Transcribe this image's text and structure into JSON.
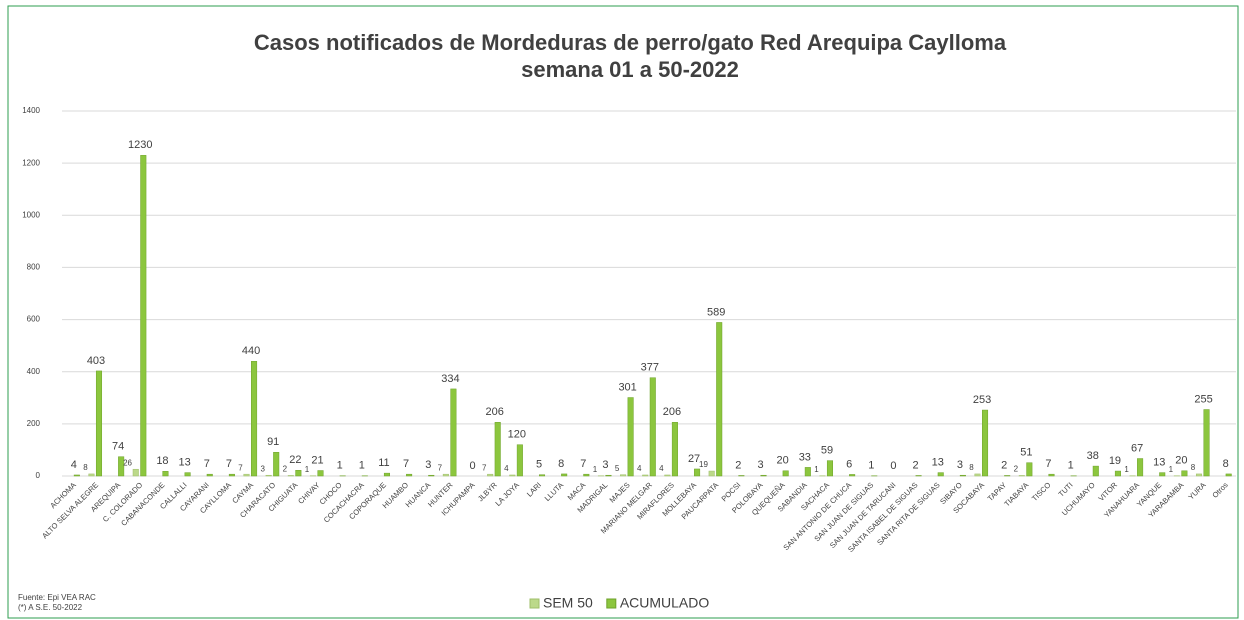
{
  "chart_data": {
    "type": "bar",
    "title": "Casos notificados de Mordeduras de perro/gato Red Arequipa Caylloma",
    "subtitle": "semana 01 a 50-2022",
    "categories": [
      "ACHOMA",
      "ALTO SELVA ALEGRE",
      "AREQUIPA",
      "C. COLORADO",
      "CABANACONDE",
      "CALLALLI",
      "CAYARANI",
      "CAYLLOMA",
      "CAYMA",
      "CHARACATO",
      "CHIGUATA",
      "CHIVAY",
      "CHOCO",
      "COCACHACRA",
      "COPORAQUE",
      "HUAMBO",
      "HUANCA",
      "HUNTER",
      "ICHUPAMPA",
      "JLBYR",
      "LA JOYA",
      "LARI",
      "LLUTA",
      "MACA",
      "MADRIGAL",
      "MAJES",
      "MARIANO MELGAR",
      "MIRAFLORES",
      "MOLLEBAYA",
      "PAUCARPATA",
      "POCSI",
      "POLOBAYA",
      "QUEQUEÑA",
      "SABANDIA",
      "SACHACA",
      "SAN ANTONIO DE CHUCA",
      "SAN JUAN DE SIGUAS",
      "SAN JUAN DE TARUCANI",
      "SANTA ISABEL DE SIGUAS",
      "SANTA RITA DE SIGUAS",
      "SIBAYO",
      "SOCABAYA",
      "TAPAY",
      "TIABAYA",
      "TISCO",
      "TUTI",
      "UCHUMAYO",
      "VITOR",
      "YANAHUARA",
      "YANQUE",
      "YARABAMBA",
      "YURA",
      "Otros"
    ],
    "series": [
      {
        "name": "SEM 50",
        "color": "#bcd98a",
        "values": [
          null,
          8,
          null,
          26,
          null,
          null,
          null,
          null,
          7,
          3,
          2,
          1,
          null,
          null,
          null,
          null,
          null,
          7,
          null,
          7,
          4,
          null,
          null,
          null,
          1,
          5,
          4,
          4,
          null,
          19,
          null,
          null,
          null,
          null,
          1,
          null,
          null,
          null,
          null,
          null,
          null,
          8,
          null,
          2,
          null,
          null,
          null,
          null,
          1,
          null,
          1,
          8,
          null
        ]
      },
      {
        "name": "ACUMULADO",
        "color": "#8cc63e",
        "values": [
          4,
          403,
          74,
          1230,
          18,
          13,
          7,
          7,
          440,
          91,
          22,
          21,
          1,
          1,
          11,
          7,
          3,
          334,
          0,
          206,
          120,
          5,
          8,
          7,
          3,
          301,
          377,
          206,
          27,
          589,
          2,
          3,
          20,
          33,
          59,
          6,
          1,
          0,
          2,
          13,
          3,
          253,
          2,
          51,
          7,
          1,
          38,
          19,
          67,
          13,
          20,
          255,
          8
        ]
      }
    ],
    "ylim": [
      0,
      1400
    ],
    "yticks": [
      0,
      200,
      400,
      600,
      800,
      1000,
      1200,
      1400
    ],
    "grid": true,
    "legend": "bottom",
    "notes": [
      "Fuente: Epi VEA RAC",
      "(*) A S.E. 50-2022"
    ]
  }
}
